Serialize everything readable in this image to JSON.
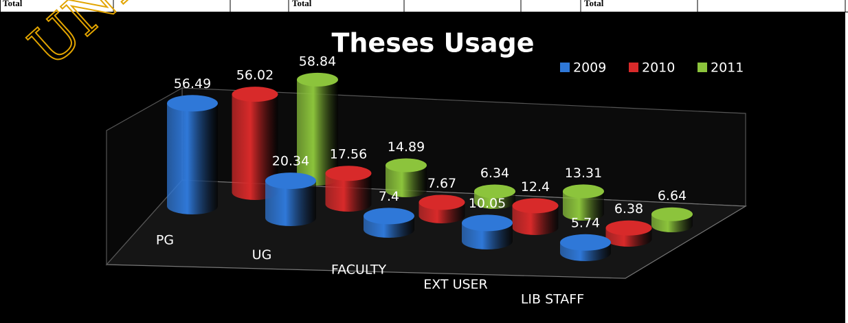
{
  "header": {
    "cells": [
      "Total",
      "Total",
      "Total"
    ]
  },
  "watermark": "UNIV",
  "chart_data": {
    "type": "bar3d",
    "title": "Theses Usage",
    "categories": [
      "PG",
      "UG",
      "FACULTY",
      "EXT USER",
      "LIB STAFF"
    ],
    "series": [
      {
        "name": "2009",
        "color": "#2f78d8",
        "values": [
          56.49,
          20.34,
          7.4,
          10.05,
          5.74
        ]
      },
      {
        "name": "2010",
        "color": "#d82a2a",
        "values": [
          56.02,
          17.56,
          7.67,
          12.4,
          6.38
        ]
      },
      {
        "name": "2011",
        "color": "#8cc43c",
        "values": [
          58.84,
          14.89,
          6.34,
          13.31,
          6.64
        ]
      }
    ],
    "legend": "top-right"
  }
}
